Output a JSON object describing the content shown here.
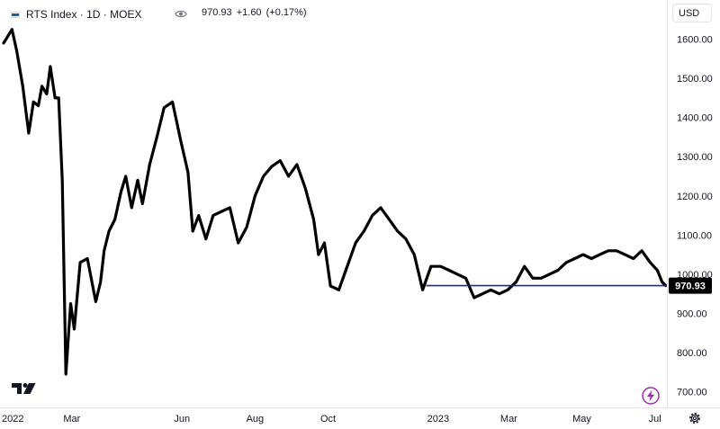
{
  "header": {
    "title": "RTS Index · 1D · MOEX",
    "last_price": "970.93",
    "change": "+1.60",
    "change_pct": "(+0.17%)"
  },
  "currency_button": "USD",
  "colors": {
    "line": "#000000",
    "ref_line": "#1f2a8c",
    "label_bg": "#000000",
    "label_text": "#ffffff",
    "axis_text": "#131722",
    "bolt": "#9c27b0"
  },
  "icons": [
    "russia-flag-icon",
    "eye-icon",
    "tradingview-logo",
    "bolt-icon",
    "gear-icon"
  ],
  "chart_data": {
    "type": "line",
    "title": "RTS Index · 1D · MOEX",
    "xlabel": "",
    "ylabel": "",
    "ylim": [
      660,
      1700
    ],
    "xlim": [
      "2021-12-31",
      "2023-07-11"
    ],
    "x_ticks": [
      {
        "label": "2022",
        "date": "2022-01-01"
      },
      {
        "label": "Mar",
        "date": "2022-03-01"
      },
      {
        "label": "Jun",
        "date": "2022-06-01"
      },
      {
        "label": "Aug",
        "date": "2022-08-01"
      },
      {
        "label": "Oct",
        "date": "2022-10-01"
      },
      {
        "label": "2023",
        "date": "2023-01-01"
      },
      {
        "label": "Mar",
        "date": "2023-03-01"
      },
      {
        "label": "May",
        "date": "2023-05-01"
      },
      {
        "label": "Jul",
        "date": "2023-07-01"
      }
    ],
    "y_ticks": [
      "700.00",
      "800.00",
      "900.00",
      "1000.00",
      "1100.00",
      "1200.00",
      "1300.00",
      "1400.00",
      "1500.00",
      "1600.00"
    ],
    "y_tick_values": [
      700,
      800,
      900,
      1000,
      1100,
      1200,
      1300,
      1400,
      1500,
      1600
    ],
    "last_value": 970.93,
    "last_value_label": "970.93",
    "ref_line": {
      "value": 970.93,
      "from": "2022-12-22",
      "to": "2023-07-11"
    },
    "grid": false,
    "series": [
      {
        "x": [
          "2022-01-03",
          "2022-01-05",
          "2022-01-10",
          "2022-01-14",
          "2022-01-19",
          "2022-01-24",
          "2022-01-28",
          "2022-02-01",
          "2022-02-04",
          "2022-02-08",
          "2022-02-11",
          "2022-02-15",
          "2022-02-18",
          "2022-02-21",
          "2022-02-24",
          "2022-02-28",
          "2022-03-03",
          "2022-03-08",
          "2022-03-14",
          "2022-03-21",
          "2022-03-25",
          "2022-03-28",
          "2022-04-01",
          "2022-04-06",
          "2022-04-11",
          "2022-04-15",
          "2022-04-20",
          "2022-04-25",
          "2022-04-29",
          "2022-05-05",
          "2022-05-11",
          "2022-05-17",
          "2022-05-24",
          "2022-05-31",
          "2022-06-06",
          "2022-06-10",
          "2022-06-15",
          "2022-06-21",
          "2022-06-27",
          "2022-07-04",
          "2022-07-11",
          "2022-07-18",
          "2022-07-25",
          "2022-08-01",
          "2022-08-08",
          "2022-08-15",
          "2022-08-22",
          "2022-08-29",
          "2022-09-05",
          "2022-09-12",
          "2022-09-19",
          "2022-09-23",
          "2022-09-28",
          "2022-10-03",
          "2022-10-10",
          "2022-10-17",
          "2022-10-24",
          "2022-10-31",
          "2022-11-07",
          "2022-11-14",
          "2022-11-21",
          "2022-11-28",
          "2022-12-05",
          "2022-12-12",
          "2022-12-19",
          "2022-12-26",
          "2023-01-03",
          "2023-01-10",
          "2023-01-17",
          "2023-01-24",
          "2023-01-31",
          "2023-02-07",
          "2023-02-14",
          "2023-02-21",
          "2023-02-28",
          "2023-03-07",
          "2023-03-14",
          "2023-03-21",
          "2023-03-28",
          "2023-04-04",
          "2023-04-11",
          "2023-04-18",
          "2023-04-25",
          "2023-05-02",
          "2023-05-09",
          "2023-05-16",
          "2023-05-23",
          "2023-05-30",
          "2023-06-06",
          "2023-06-13",
          "2023-06-20",
          "2023-06-27",
          "2023-07-03",
          "2023-07-07",
          "2023-07-10"
        ],
        "values": [
          1590,
          1600,
          1625,
          1570,
          1480,
          1360,
          1440,
          1430,
          1480,
          1460,
          1530,
          1450,
          1450,
          1240,
          745,
          925,
          860,
          1030,
          1040,
          930,
          980,
          1060,
          1110,
          1140,
          1210,
          1250,
          1170,
          1240,
          1180,
          1280,
          1350,
          1425,
          1440,
          1340,
          1260,
          1110,
          1150,
          1090,
          1150,
          1160,
          1170,
          1080,
          1120,
          1200,
          1250,
          1275,
          1290,
          1250,
          1280,
          1220,
          1140,
          1050,
          1080,
          970,
          960,
          1020,
          1080,
          1110,
          1150,
          1170,
          1140,
          1110,
          1090,
          1050,
          960,
          1020,
          1020,
          1010,
          1000,
          990,
          940,
          950,
          960,
          950,
          960,
          980,
          1020,
          990,
          990,
          1000,
          1010,
          1030,
          1040,
          1050,
          1040,
          1050,
          1060,
          1060,
          1050,
          1040,
          1060,
          1030,
          1010,
          980,
          970.93
        ]
      }
    ]
  }
}
